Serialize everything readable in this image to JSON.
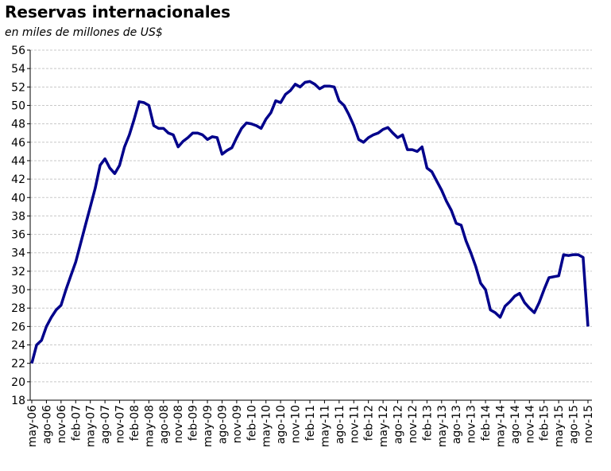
{
  "chart_data": {
    "type": "line",
    "title": "Reservas internacionales",
    "subtitle": "en miles de millones de US$",
    "categories": [
      "may-06",
      null,
      null,
      "ago-06",
      null,
      null,
      "nov-06",
      null,
      null,
      "feb-07",
      null,
      null,
      "may-07",
      null,
      null,
      "ago-07",
      null,
      null,
      "nov-07",
      null,
      null,
      "feb-08",
      null,
      null,
      "may-08",
      null,
      null,
      "ago-08",
      null,
      null,
      "nov-08",
      null,
      null,
      "feb-09",
      null,
      null,
      "may-09",
      null,
      null,
      "ago-09",
      null,
      null,
      "nov-09",
      null,
      null,
      "feb-10",
      null,
      null,
      "may-10",
      null,
      null,
      "ago-10",
      null,
      null,
      "nov-10",
      null,
      null,
      "feb-11",
      null,
      null,
      "may-11",
      null,
      null,
      "ago-11",
      null,
      null,
      "nov-11",
      null,
      null,
      "feb-12",
      null,
      null,
      "may-12",
      null,
      null,
      "ago-12",
      null,
      null,
      "nov-12",
      null,
      null,
      "feb-13",
      null,
      null,
      "may-13",
      null,
      null,
      "ago-13",
      null,
      null,
      "nov-13",
      null,
      null,
      "feb-14",
      null,
      null,
      "may-14",
      null,
      null,
      "ago-14",
      null,
      null,
      "nov-14",
      null,
      null,
      "feb-15",
      null,
      null,
      "may-15",
      null,
      null,
      "ago-15",
      null,
      null,
      "nov-15"
    ],
    "series": [
      {
        "color": "#00008b",
        "values": [
          22,
          24,
          24.5,
          26,
          27,
          27.8,
          28.3,
          30,
          31.5,
          33,
          35,
          37,
          39,
          41,
          43.5,
          44.2,
          43.2,
          42.6,
          43.5,
          45.5,
          46.8,
          48.5,
          50.4,
          50.3,
          50,
          47.8,
          47.5,
          47.5,
          47,
          46.8,
          45.5,
          46.1,
          46.5,
          47,
          47,
          46.8,
          46.3,
          46.6,
          46.5,
          44.7,
          45.1,
          45.4,
          46.5,
          47.5,
          48.1,
          48,
          47.8,
          47.5,
          48.5,
          49.2,
          50.5,
          50.3,
          51.2,
          51.6,
          52.3,
          52,
          52.5,
          52.6,
          52.3,
          51.8,
          52.1,
          52.1,
          52,
          50.5,
          50,
          49,
          47.8,
          46.3,
          46,
          46.5,
          46.8,
          47,
          47.4,
          47.6,
          47,
          46.5,
          46.8,
          45.2,
          45.2,
          45,
          45.5,
          43.2,
          42.8,
          41.8,
          40.8,
          39.6,
          38.6,
          37.2,
          37,
          35.3,
          34,
          32.5,
          30.7,
          30,
          27.8,
          27.5,
          27,
          28.2,
          28.7,
          29.3,
          29.6,
          28.6,
          28,
          27.5,
          28.6,
          30,
          31.3,
          31.4,
          31.5,
          33.8,
          33.7,
          33.8,
          33.8,
          33.5,
          26
        ]
      }
    ],
    "ylim": [
      18,
      56
    ],
    "yticks": [
      18,
      20,
      22,
      24,
      26,
      28,
      30,
      32,
      34,
      36,
      38,
      40,
      42,
      44,
      46,
      48,
      50,
      52,
      54,
      56
    ],
    "grid": true
  }
}
